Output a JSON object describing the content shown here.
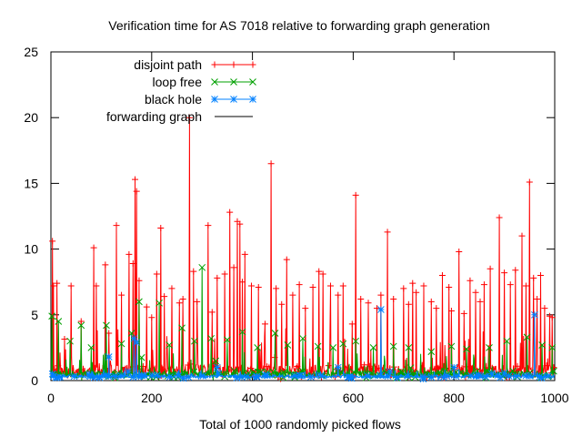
{
  "chart_data": {
    "type": "line",
    "title": "Verification time for AS 7018 relative to forwarding graph generation",
    "xlabel": "Total of 1000 randomly picked flows",
    "ylabel": "",
    "xlim": [
      0,
      1000
    ],
    "ylim": [
      0,
      25
    ],
    "x_ticks": [
      "0",
      "200",
      "400",
      "600",
      "800",
      "1000"
    ],
    "y_ticks": [
      "0",
      "5",
      "10",
      "15",
      "20",
      "25"
    ],
    "grid": false,
    "legend_position": "top-left",
    "series": [
      {
        "name": "disjoint path",
        "color": "#ff0000",
        "marker": "plus",
        "peaks": [
          {
            "x": 3,
            "y": 10.6
          },
          {
            "x": 5,
            "y": 7.2
          },
          {
            "x": 12,
            "y": 7.4
          },
          {
            "x": 40,
            "y": 7.2
          },
          {
            "x": 60,
            "y": 4.5
          },
          {
            "x": 85,
            "y": 10.1
          },
          {
            "x": 90,
            "y": 7.2
          },
          {
            "x": 108,
            "y": 8.8
          },
          {
            "x": 115,
            "y": 3.6
          },
          {
            "x": 130,
            "y": 11.8
          },
          {
            "x": 140,
            "y": 6.5
          },
          {
            "x": 155,
            "y": 9.6
          },
          {
            "x": 163,
            "y": 8.9
          },
          {
            "x": 167,
            "y": 15.3
          },
          {
            "x": 170,
            "y": 14.4
          },
          {
            "x": 175,
            "y": 7.6
          },
          {
            "x": 190,
            "y": 5.6
          },
          {
            "x": 200,
            "y": 4.8
          },
          {
            "x": 210,
            "y": 8.1
          },
          {
            "x": 218,
            "y": 11.6
          },
          {
            "x": 225,
            "y": 6.4
          },
          {
            "x": 240,
            "y": 7.0
          },
          {
            "x": 255,
            "y": 5.9
          },
          {
            "x": 262,
            "y": 6.2
          },
          {
            "x": 275,
            "y": 20.0
          },
          {
            "x": 283,
            "y": 8.3
          },
          {
            "x": 290,
            "y": 6.0
          },
          {
            "x": 312,
            "y": 11.8
          },
          {
            "x": 320,
            "y": 5.2
          },
          {
            "x": 330,
            "y": 7.8
          },
          {
            "x": 345,
            "y": 8.1
          },
          {
            "x": 355,
            "y": 12.8
          },
          {
            "x": 363,
            "y": 8.6
          },
          {
            "x": 370,
            "y": 12.1
          },
          {
            "x": 375,
            "y": 11.9
          },
          {
            "x": 380,
            "y": 7.5
          },
          {
            "x": 385,
            "y": 9.6
          },
          {
            "x": 398,
            "y": 7.2
          },
          {
            "x": 412,
            "y": 7.1
          },
          {
            "x": 425,
            "y": 4.3
          },
          {
            "x": 437,
            "y": 16.5
          },
          {
            "x": 447,
            "y": 7.0
          },
          {
            "x": 458,
            "y": 5.8
          },
          {
            "x": 468,
            "y": 9.2
          },
          {
            "x": 480,
            "y": 6.5
          },
          {
            "x": 493,
            "y": 7.3
          },
          {
            "x": 505,
            "y": 5.5
          },
          {
            "x": 520,
            "y": 7.1
          },
          {
            "x": 532,
            "y": 8.3
          },
          {
            "x": 540,
            "y": 8.1
          },
          {
            "x": 555,
            "y": 7.2
          },
          {
            "x": 570,
            "y": 6.5
          },
          {
            "x": 580,
            "y": 7.2
          },
          {
            "x": 598,
            "y": 4.3
          },
          {
            "x": 605,
            "y": 14.1
          },
          {
            "x": 615,
            "y": 6.2
          },
          {
            "x": 630,
            "y": 5.9
          },
          {
            "x": 647,
            "y": 5.5
          },
          {
            "x": 655,
            "y": 6.5
          },
          {
            "x": 668,
            "y": 11.3
          },
          {
            "x": 680,
            "y": 6.2
          },
          {
            "x": 700,
            "y": 7.0
          },
          {
            "x": 710,
            "y": 5.8
          },
          {
            "x": 718,
            "y": 7.4
          },
          {
            "x": 725,
            "y": 6.7
          },
          {
            "x": 740,
            "y": 7.2
          },
          {
            "x": 755,
            "y": 6.0
          },
          {
            "x": 765,
            "y": 5.5
          },
          {
            "x": 777,
            "y": 8.0
          },
          {
            "x": 790,
            "y": 7.1
          },
          {
            "x": 795,
            "y": 5.3
          },
          {
            "x": 810,
            "y": 9.8
          },
          {
            "x": 820,
            "y": 5.1
          },
          {
            "x": 832,
            "y": 7.6
          },
          {
            "x": 843,
            "y": 6.7
          },
          {
            "x": 852,
            "y": 6.0
          },
          {
            "x": 860,
            "y": 7.3
          },
          {
            "x": 872,
            "y": 8.5
          },
          {
            "x": 890,
            "y": 12.4
          },
          {
            "x": 900,
            "y": 8.2
          },
          {
            "x": 912,
            "y": 7.3
          },
          {
            "x": 922,
            "y": 8.4
          },
          {
            "x": 935,
            "y": 11.0
          },
          {
            "x": 943,
            "y": 7.2
          },
          {
            "x": 950,
            "y": 15.1
          },
          {
            "x": 958,
            "y": 7.8
          },
          {
            "x": 965,
            "y": 6.2
          },
          {
            "x": 972,
            "y": 8.0
          },
          {
            "x": 980,
            "y": 5.5
          },
          {
            "x": 990,
            "y": 4.9
          },
          {
            "x": 995,
            "y": 4.8
          }
        ]
      },
      {
        "name": "loop free",
        "color": "#00a000",
        "marker": "x",
        "peaks": [
          {
            "x": 2,
            "y": 4.9
          },
          {
            "x": 15,
            "y": 4.5
          },
          {
            "x": 38,
            "y": 3.0
          },
          {
            "x": 60,
            "y": 4.2
          },
          {
            "x": 80,
            "y": 2.5
          },
          {
            "x": 110,
            "y": 4.2
          },
          {
            "x": 140,
            "y": 2.8
          },
          {
            "x": 160,
            "y": 3.6
          },
          {
            "x": 175,
            "y": 6.0
          },
          {
            "x": 215,
            "y": 5.9
          },
          {
            "x": 235,
            "y": 2.7
          },
          {
            "x": 260,
            "y": 4.0
          },
          {
            "x": 285,
            "y": 3.0
          },
          {
            "x": 300,
            "y": 8.6
          },
          {
            "x": 318,
            "y": 3.2
          },
          {
            "x": 350,
            "y": 3.1
          },
          {
            "x": 380,
            "y": 3.7
          },
          {
            "x": 410,
            "y": 2.5
          },
          {
            "x": 445,
            "y": 3.6
          },
          {
            "x": 470,
            "y": 2.7
          },
          {
            "x": 500,
            "y": 3.2
          },
          {
            "x": 530,
            "y": 2.6
          },
          {
            "x": 560,
            "y": 2.5
          },
          {
            "x": 580,
            "y": 2.8
          },
          {
            "x": 605,
            "y": 3.0
          },
          {
            "x": 640,
            "y": 2.5
          },
          {
            "x": 680,
            "y": 2.6
          },
          {
            "x": 710,
            "y": 2.5
          },
          {
            "x": 755,
            "y": 2.2
          },
          {
            "x": 795,
            "y": 2.6
          },
          {
            "x": 825,
            "y": 2.4
          },
          {
            "x": 870,
            "y": 2.5
          },
          {
            "x": 905,
            "y": 3.0
          },
          {
            "x": 945,
            "y": 3.3
          },
          {
            "x": 975,
            "y": 2.7
          },
          {
            "x": 995,
            "y": 2.5
          }
        ]
      },
      {
        "name": "black hole",
        "color": "#0080ff",
        "marker": "star",
        "peaks": [
          {
            "x": 3,
            "y": 0.5
          },
          {
            "x": 115,
            "y": 1.8
          },
          {
            "x": 165,
            "y": 3.2
          },
          {
            "x": 170,
            "y": 2.9
          },
          {
            "x": 330,
            "y": 1.0
          },
          {
            "x": 570,
            "y": 1.0
          },
          {
            "x": 655,
            "y": 5.4
          },
          {
            "x": 800,
            "y": 1.0
          },
          {
            "x": 960,
            "y": 5.0
          }
        ]
      },
      {
        "name": "forwarding graph",
        "color": "#000000",
        "marker": "none",
        "peaks": []
      }
    ]
  }
}
